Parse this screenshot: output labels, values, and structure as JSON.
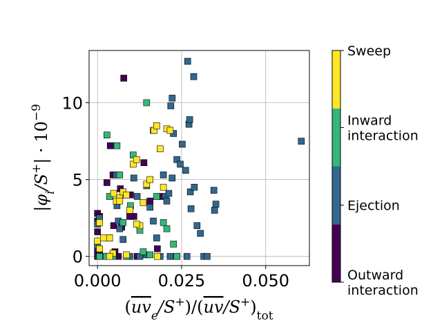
{
  "chart_data": {
    "type": "scatter",
    "title": "",
    "xlabel_parts": [
      "(",
      "uv",
      "e",
      "/S",
      "+",
      ")/(",
      "uv",
      "/S",
      "+",
      ")",
      "tot"
    ],
    "ylabel_parts": [
      "|φ",
      "i",
      "/S",
      "+",
      "| · 10",
      "−9"
    ],
    "xlim": [
      -0.0025,
      0.063
    ],
    "ylim": [
      -0.6,
      13.4
    ],
    "xticks": [
      {
        "value": 0.0,
        "label": "0.000"
      },
      {
        "value": 0.025,
        "label": "0.025"
      },
      {
        "value": 0.05,
        "label": "0.050"
      }
    ],
    "yticks": [
      {
        "value": 0,
        "label": "0"
      },
      {
        "value": 5,
        "label": "5"
      },
      {
        "value": 10,
        "label": "10"
      }
    ],
    "grid": true,
    "marker": "square",
    "colorbar": {
      "categories": [
        {
          "key": "outward",
          "label_lines": [
            "Outward",
            "interaction"
          ],
          "color": "#440154"
        },
        {
          "key": "ejection",
          "label_lines": [
            "Ejection"
          ],
          "color": "#31688e"
        },
        {
          "key": "inward",
          "label_lines": [
            "Inward",
            "interaction"
          ],
          "color": "#35b779"
        },
        {
          "key": "sweep",
          "label_lines": [
            "Sweep"
          ],
          "color": "#fde725"
        }
      ]
    },
    "series": [
      {
        "name": "Outward interaction",
        "category": "outward",
        "points": [
          [
            0.0,
            2.8
          ],
          [
            0.0,
            2.3
          ],
          [
            0.0,
            1.6
          ],
          [
            0.0,
            0.9
          ],
          [
            0.0,
            0.4
          ],
          [
            0.0,
            0.0
          ],
          [
            0.0006,
            2.6
          ],
          [
            0.0028,
            4.8
          ],
          [
            0.0038,
            7.2
          ],
          [
            0.0046,
            5.3
          ],
          [
            0.0048,
            2.0
          ],
          [
            0.0052,
            0.3
          ],
          [
            0.0062,
            0.0
          ],
          [
            0.0068,
            4.4
          ],
          [
            0.0078,
            11.6
          ],
          [
            0.0098,
            4.0
          ],
          [
            0.0108,
            2.6
          ],
          [
            0.0138,
            6.1
          ],
          [
            0.0156,
            3.6
          ],
          [
            0.0178,
            0.5
          ],
          [
            0.0188,
            3.9
          ],
          [
            0.0028,
            0.0
          ],
          [
            0.0118,
            0.0
          ],
          [
            0.0072,
            1.9
          ],
          [
            0.0096,
            2.6
          ],
          [
            0.0006,
            0.2
          ]
        ]
      },
      {
        "name": "Ejection",
        "category": "ejection",
        "points": [
          [
            0.0,
            2.1
          ],
          [
            0.0,
            0.7
          ],
          [
            0.0006,
            2.5
          ],
          [
            0.0018,
            0.0
          ],
          [
            0.0036,
            1.2
          ],
          [
            0.0048,
            0.0
          ],
          [
            0.0056,
            5.3
          ],
          [
            0.0058,
            3.3
          ],
          [
            0.0062,
            2.3
          ],
          [
            0.0066,
            1.8
          ],
          [
            0.0076,
            1.1
          ],
          [
            0.0086,
            4.0
          ],
          [
            0.0096,
            0.0
          ],
          [
            0.0108,
            5.1
          ],
          [
            0.0118,
            3.9
          ],
          [
            0.0126,
            0.0
          ],
          [
            0.0146,
            4.6
          ],
          [
            0.0156,
            3.2
          ],
          [
            0.0166,
            2.3
          ],
          [
            0.0176,
            1.2
          ],
          [
            0.0186,
            0.0
          ],
          [
            0.0196,
            5.3
          ],
          [
            0.0202,
            3.9
          ],
          [
            0.0206,
            3.6
          ],
          [
            0.0212,
            4.1
          ],
          [
            0.0216,
            0.0
          ],
          [
            0.0222,
            5.1
          ],
          [
            0.0226,
            8.0
          ],
          [
            0.0236,
            6.3
          ],
          [
            0.0246,
            6.0
          ],
          [
            0.0252,
            7.3
          ],
          [
            0.0262,
            5.6
          ],
          [
            0.0266,
            0.0
          ],
          [
            0.0272,
            8.6
          ],
          [
            0.0276,
            4.2
          ],
          [
            0.0278,
            3.1
          ],
          [
            0.0288,
            4.5
          ],
          [
            0.0296,
            2.0
          ],
          [
            0.0306,
            1.5
          ],
          [
            0.0316,
            0.0
          ],
          [
            0.0326,
            0.0
          ],
          [
            0.0346,
            4.3
          ],
          [
            0.0348,
            3.0
          ],
          [
            0.0352,
            3.4
          ],
          [
            0.0268,
            12.7
          ],
          [
            0.0286,
            11.7
          ],
          [
            0.0222,
            10.3
          ],
          [
            0.0218,
            9.8
          ],
          [
            0.0274,
            8.9
          ],
          [
            0.0606,
            7.5
          ],
          [
            0.0146,
            0.1
          ],
          [
            0.0236,
            0.0
          ]
        ]
      },
      {
        "name": "Inward interaction",
        "category": "inward",
        "points": [
          [
            0.0028,
            7.9
          ],
          [
            0.0036,
            3.9
          ],
          [
            0.0046,
            0.0
          ],
          [
            0.0058,
            7.2
          ],
          [
            0.0066,
            5.3
          ],
          [
            0.0076,
            2.2
          ],
          [
            0.0086,
            0.0
          ],
          [
            0.0098,
            3.3
          ],
          [
            0.0106,
            6.6
          ],
          [
            0.0126,
            1.7
          ],
          [
            0.0146,
            10.0
          ],
          [
            0.0156,
            0.1
          ],
          [
            0.0166,
            8.2
          ],
          [
            0.0176,
            3.9
          ],
          [
            0.0196,
            2.2
          ],
          [
            0.0206,
            1.8
          ],
          [
            0.0226,
            0.8
          ],
          [
            0.0236,
            0.0
          ],
          [
            0.0026,
            0.0
          ],
          [
            0.0136,
            0.3
          ],
          [
            0.0006,
            0.0
          ]
        ]
      },
      {
        "name": "Sweep",
        "category": "sweep",
        "points": [
          [
            0.0,
            1.0
          ],
          [
            0.0006,
            0.5
          ],
          [
            0.0018,
            1.2
          ],
          [
            0.0036,
            1.2
          ],
          [
            0.0046,
            0.2
          ],
          [
            0.0048,
            4.1
          ],
          [
            0.0056,
            3.6
          ],
          [
            0.0066,
            3.8
          ],
          [
            0.0076,
            4.2
          ],
          [
            0.0086,
            4.0
          ],
          [
            0.0096,
            3.0
          ],
          [
            0.0106,
            6.0
          ],
          [
            0.0116,
            6.3
          ],
          [
            0.0126,
            2.0
          ],
          [
            0.0136,
            3.5
          ],
          [
            0.0146,
            4.7
          ],
          [
            0.0156,
            5.0
          ],
          [
            0.0168,
            8.2
          ],
          [
            0.0176,
            8.5
          ],
          [
            0.0186,
            7.0
          ],
          [
            0.0196,
            4.5
          ],
          [
            0.0206,
            8.3
          ],
          [
            0.0216,
            8.2
          ],
          [
            0.0006,
            2.2
          ],
          [
            0.0086,
            0.1
          ],
          [
            0.0116,
            2.1
          ],
          [
            0.0178,
            0.0
          ],
          [
            0.0066,
            3.6
          ],
          [
            0.0036,
            0.0
          ]
        ]
      }
    ]
  }
}
